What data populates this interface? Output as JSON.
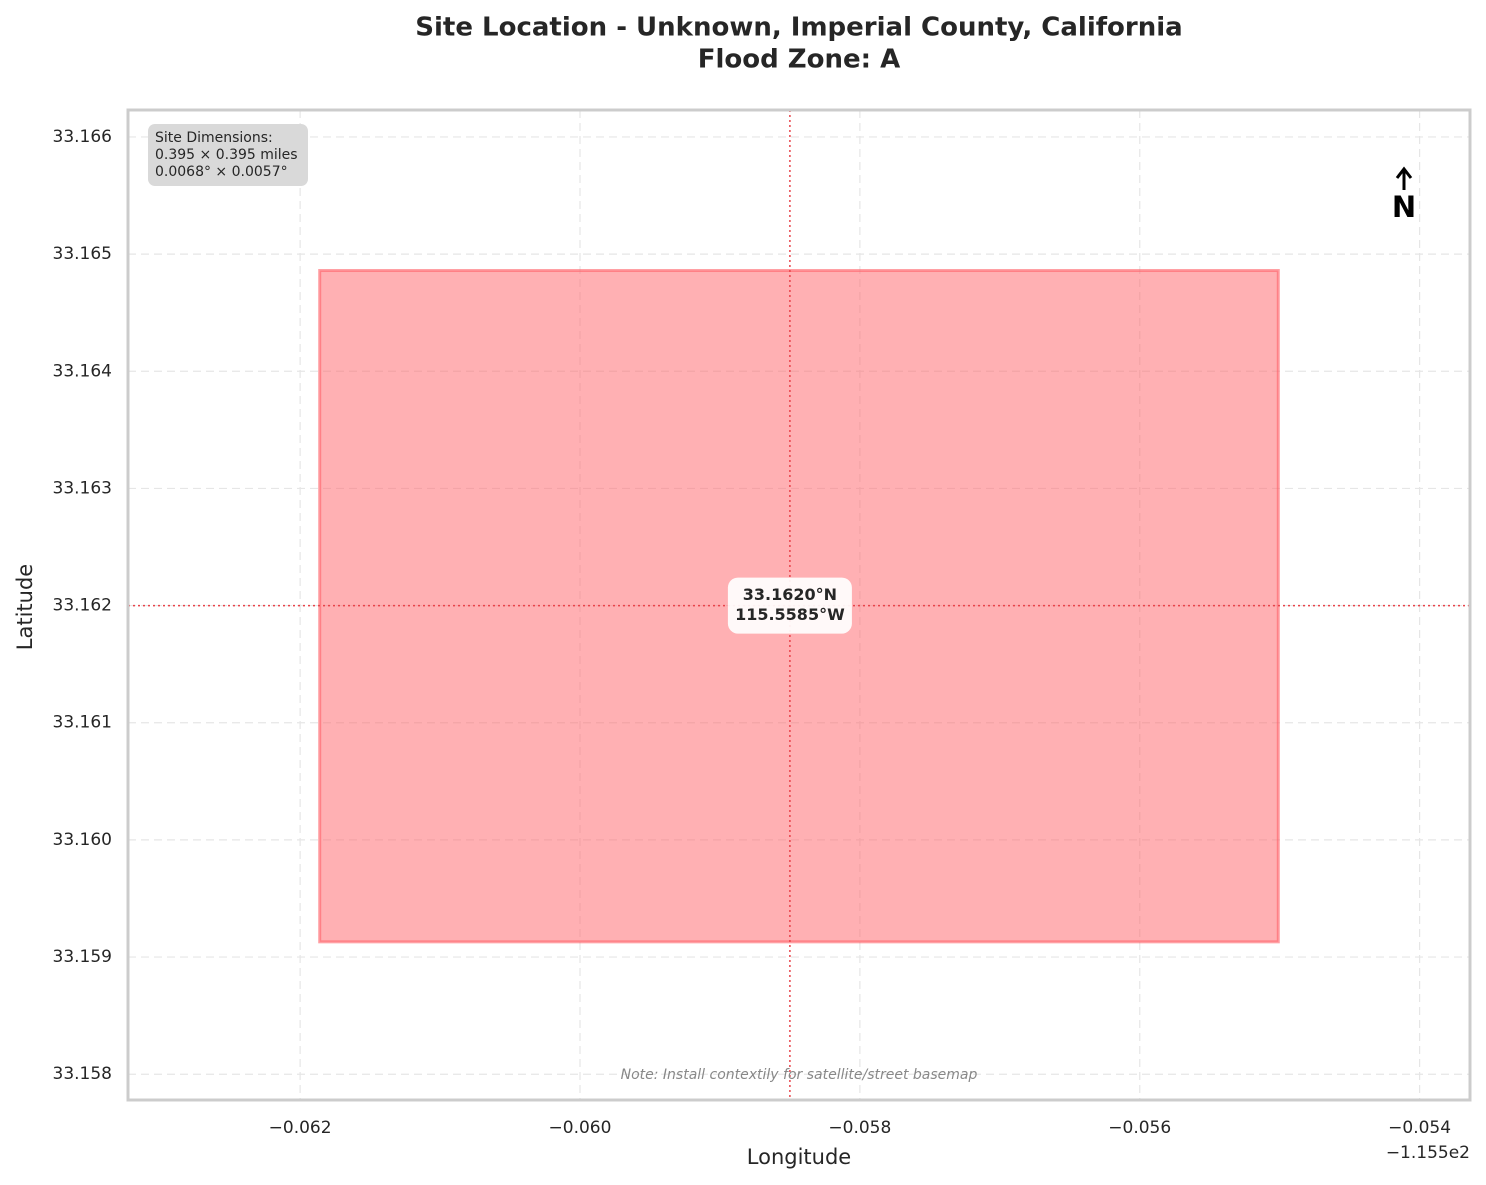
{
  "chart_data": {
    "type": "site-map",
    "title": [
      "Site Location - Unknown, Imperial County, California",
      "Flood Zone: A"
    ],
    "xlabel": "Longitude",
    "ylabel": "Latitude",
    "x_offset_label": "−1.155e2",
    "xlim": [
      -0.06323,
      -0.05364
    ],
    "ylim": [
      33.15778,
      33.16623
    ],
    "xticks": [
      {
        "value": -0.062,
        "label": "−0.062"
      },
      {
        "value": -0.06,
        "label": "−0.060"
      },
      {
        "value": -0.058,
        "label": "−0.058"
      },
      {
        "value": -0.056,
        "label": "−0.056"
      },
      {
        "value": -0.054,
        "label": "−0.054"
      }
    ],
    "yticks": [
      {
        "value": 33.158,
        "label": "33.158"
      },
      {
        "value": 33.159,
        "label": "33.159"
      },
      {
        "value": 33.16,
        "label": "33.160"
      },
      {
        "value": 33.161,
        "label": "33.161"
      },
      {
        "value": 33.162,
        "label": "33.162"
      },
      {
        "value": 33.163,
        "label": "33.163"
      },
      {
        "value": 33.164,
        "label": "33.164"
      },
      {
        "value": 33.165,
        "label": "33.165"
      },
      {
        "value": 33.166,
        "label": "33.166"
      }
    ],
    "grid": true,
    "site": {
      "lon": [
        -0.06186,
        -0.05501
      ],
      "lat": [
        33.15913,
        33.16486
      ],
      "color": "#ff6168"
    },
    "center": {
      "lon": -0.0585,
      "lat": 33.162,
      "label": [
        "33.1620°N",
        "115.5585°W"
      ],
      "color": "#e8434a"
    },
    "info_box": [
      "Site Dimensions:",
      "0.395 × 0.395 miles",
      "0.0068° × 0.0057°"
    ],
    "north_label": "N",
    "note": "Note: Install contextily for satellite/street basemap"
  }
}
